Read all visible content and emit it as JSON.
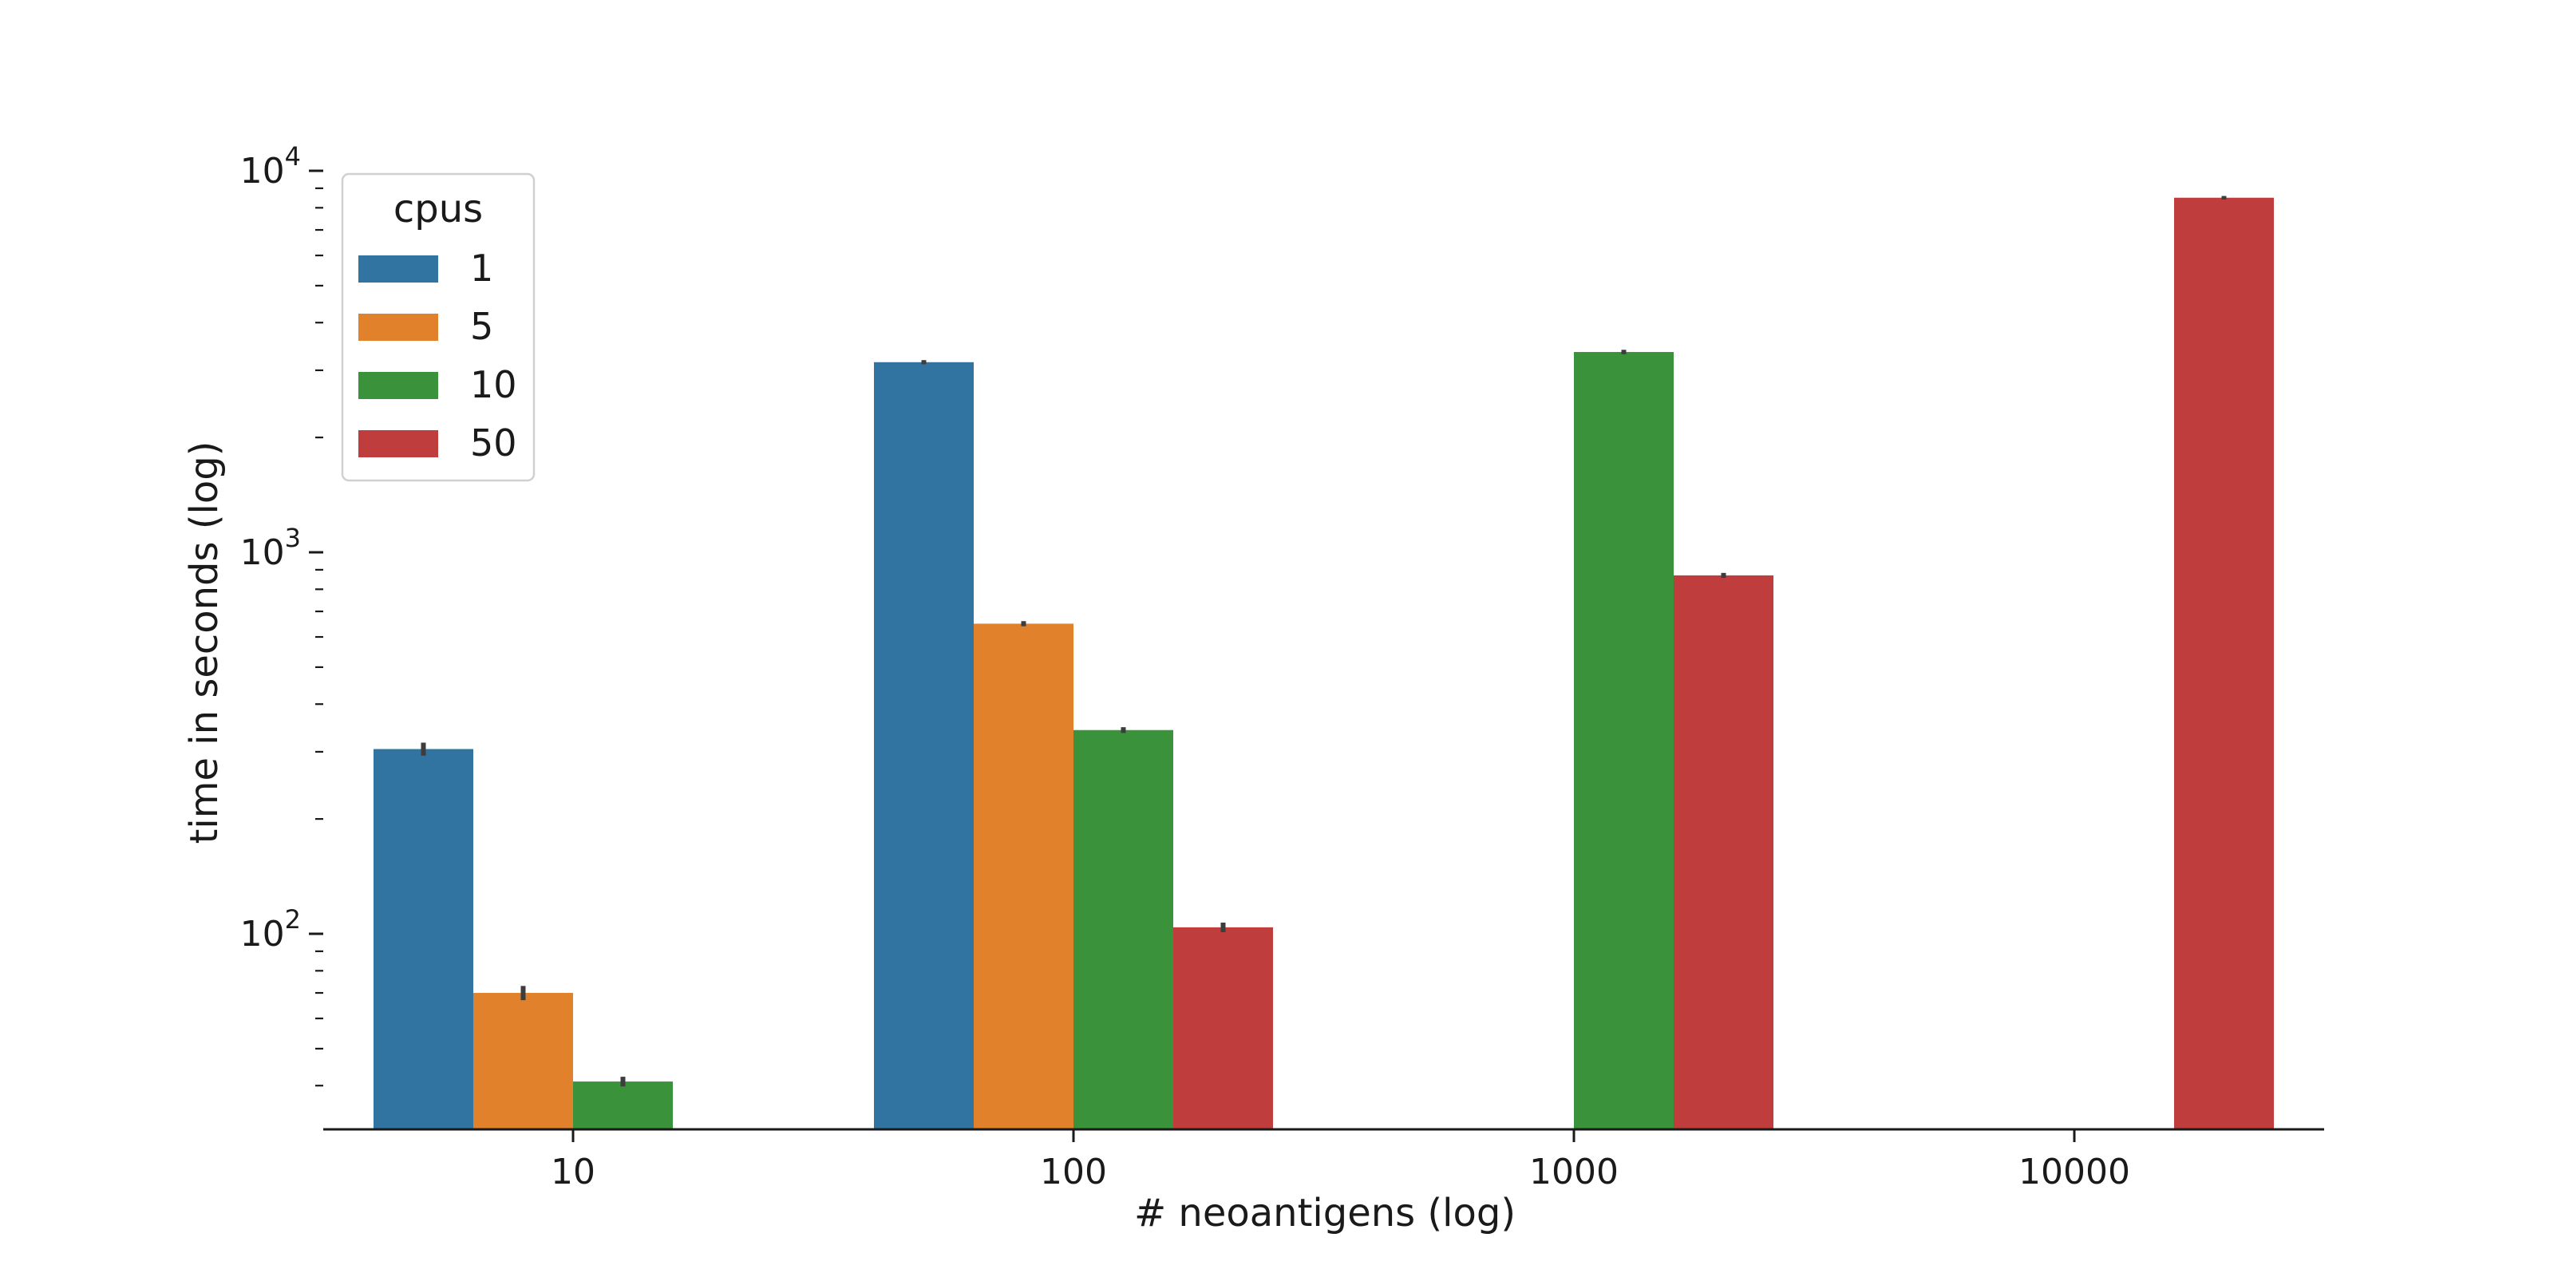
{
  "chart_data": {
    "type": "bar",
    "title": "",
    "xlabel": "# neoantigens (log)",
    "ylabel": "time in seconds (log)",
    "yscale": "log",
    "ylim": [
      33,
      12000
    ],
    "yticks": [
      {
        "value": 100,
        "base": "10",
        "exp": "2"
      },
      {
        "value": 1000,
        "base": "10",
        "exp": "3"
      },
      {
        "value": 10000,
        "base": "10",
        "exp": "4"
      }
    ],
    "categories": [
      "10",
      "100",
      "1000",
      "10000"
    ],
    "legend": {
      "title": "cpus",
      "position": "top-left"
    },
    "grid": false,
    "series": [
      {
        "name": "1",
        "color": "#3274a1",
        "values": [
          305,
          3150,
          null,
          null
        ],
        "err": [
          12,
          40,
          null,
          null
        ]
      },
      {
        "name": "5",
        "color": "#e1812c",
        "values": [
          70,
          650,
          null,
          null
        ],
        "err": [
          3,
          10,
          null,
          null
        ]
      },
      {
        "name": "10",
        "color": "#3a923a",
        "values": [
          41,
          342,
          3350,
          null
        ],
        "err": [
          1.2,
          6,
          45,
          null
        ]
      },
      {
        "name": "50",
        "color": "#c03d3e",
        "values": [
          null,
          104,
          870,
          8500
        ],
        "err": [
          null,
          3,
          13,
          90
        ]
      }
    ]
  }
}
